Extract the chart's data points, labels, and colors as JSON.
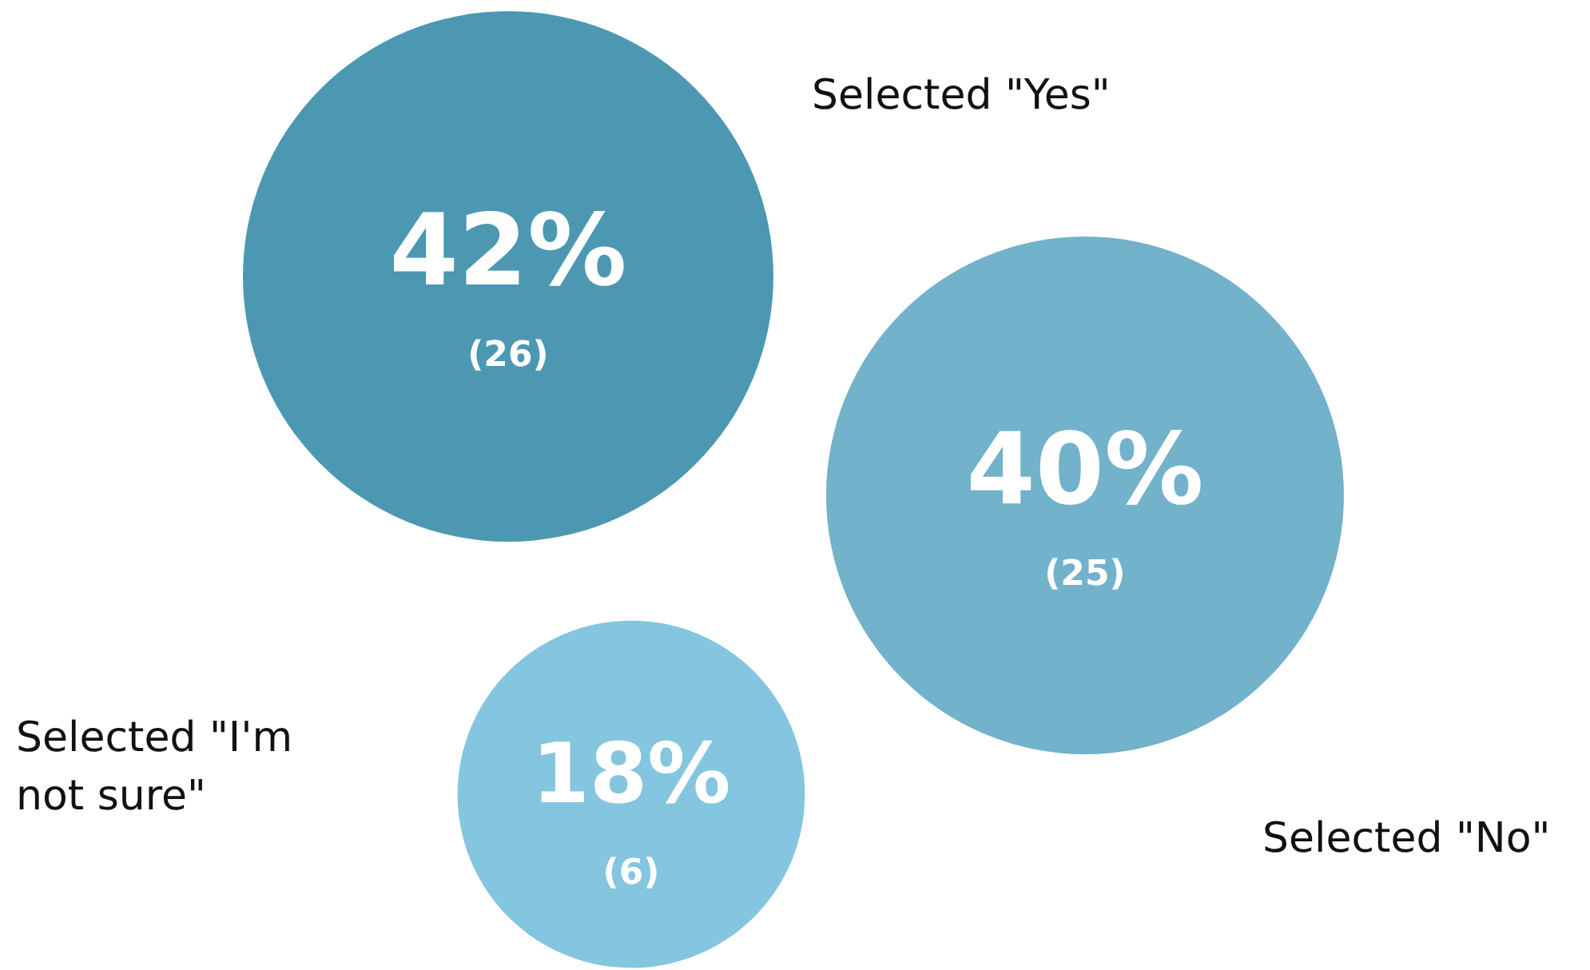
{
  "chart_data": {
    "type": "other",
    "categories": [
      "Selected \"Yes\"",
      "Selected \"No\"",
      "Selected \"I'm not sure\""
    ],
    "values": [
      42,
      40,
      18
    ],
    "value_labels": [
      "42%",
      "40%",
      "18%"
    ],
    "colors": [
      "#4c98b3",
      "#72b2cb",
      "#84c5df"
    ],
    "annotations": [
      "(26)",
      "(25)",
      "(6)"
    ]
  }
}
